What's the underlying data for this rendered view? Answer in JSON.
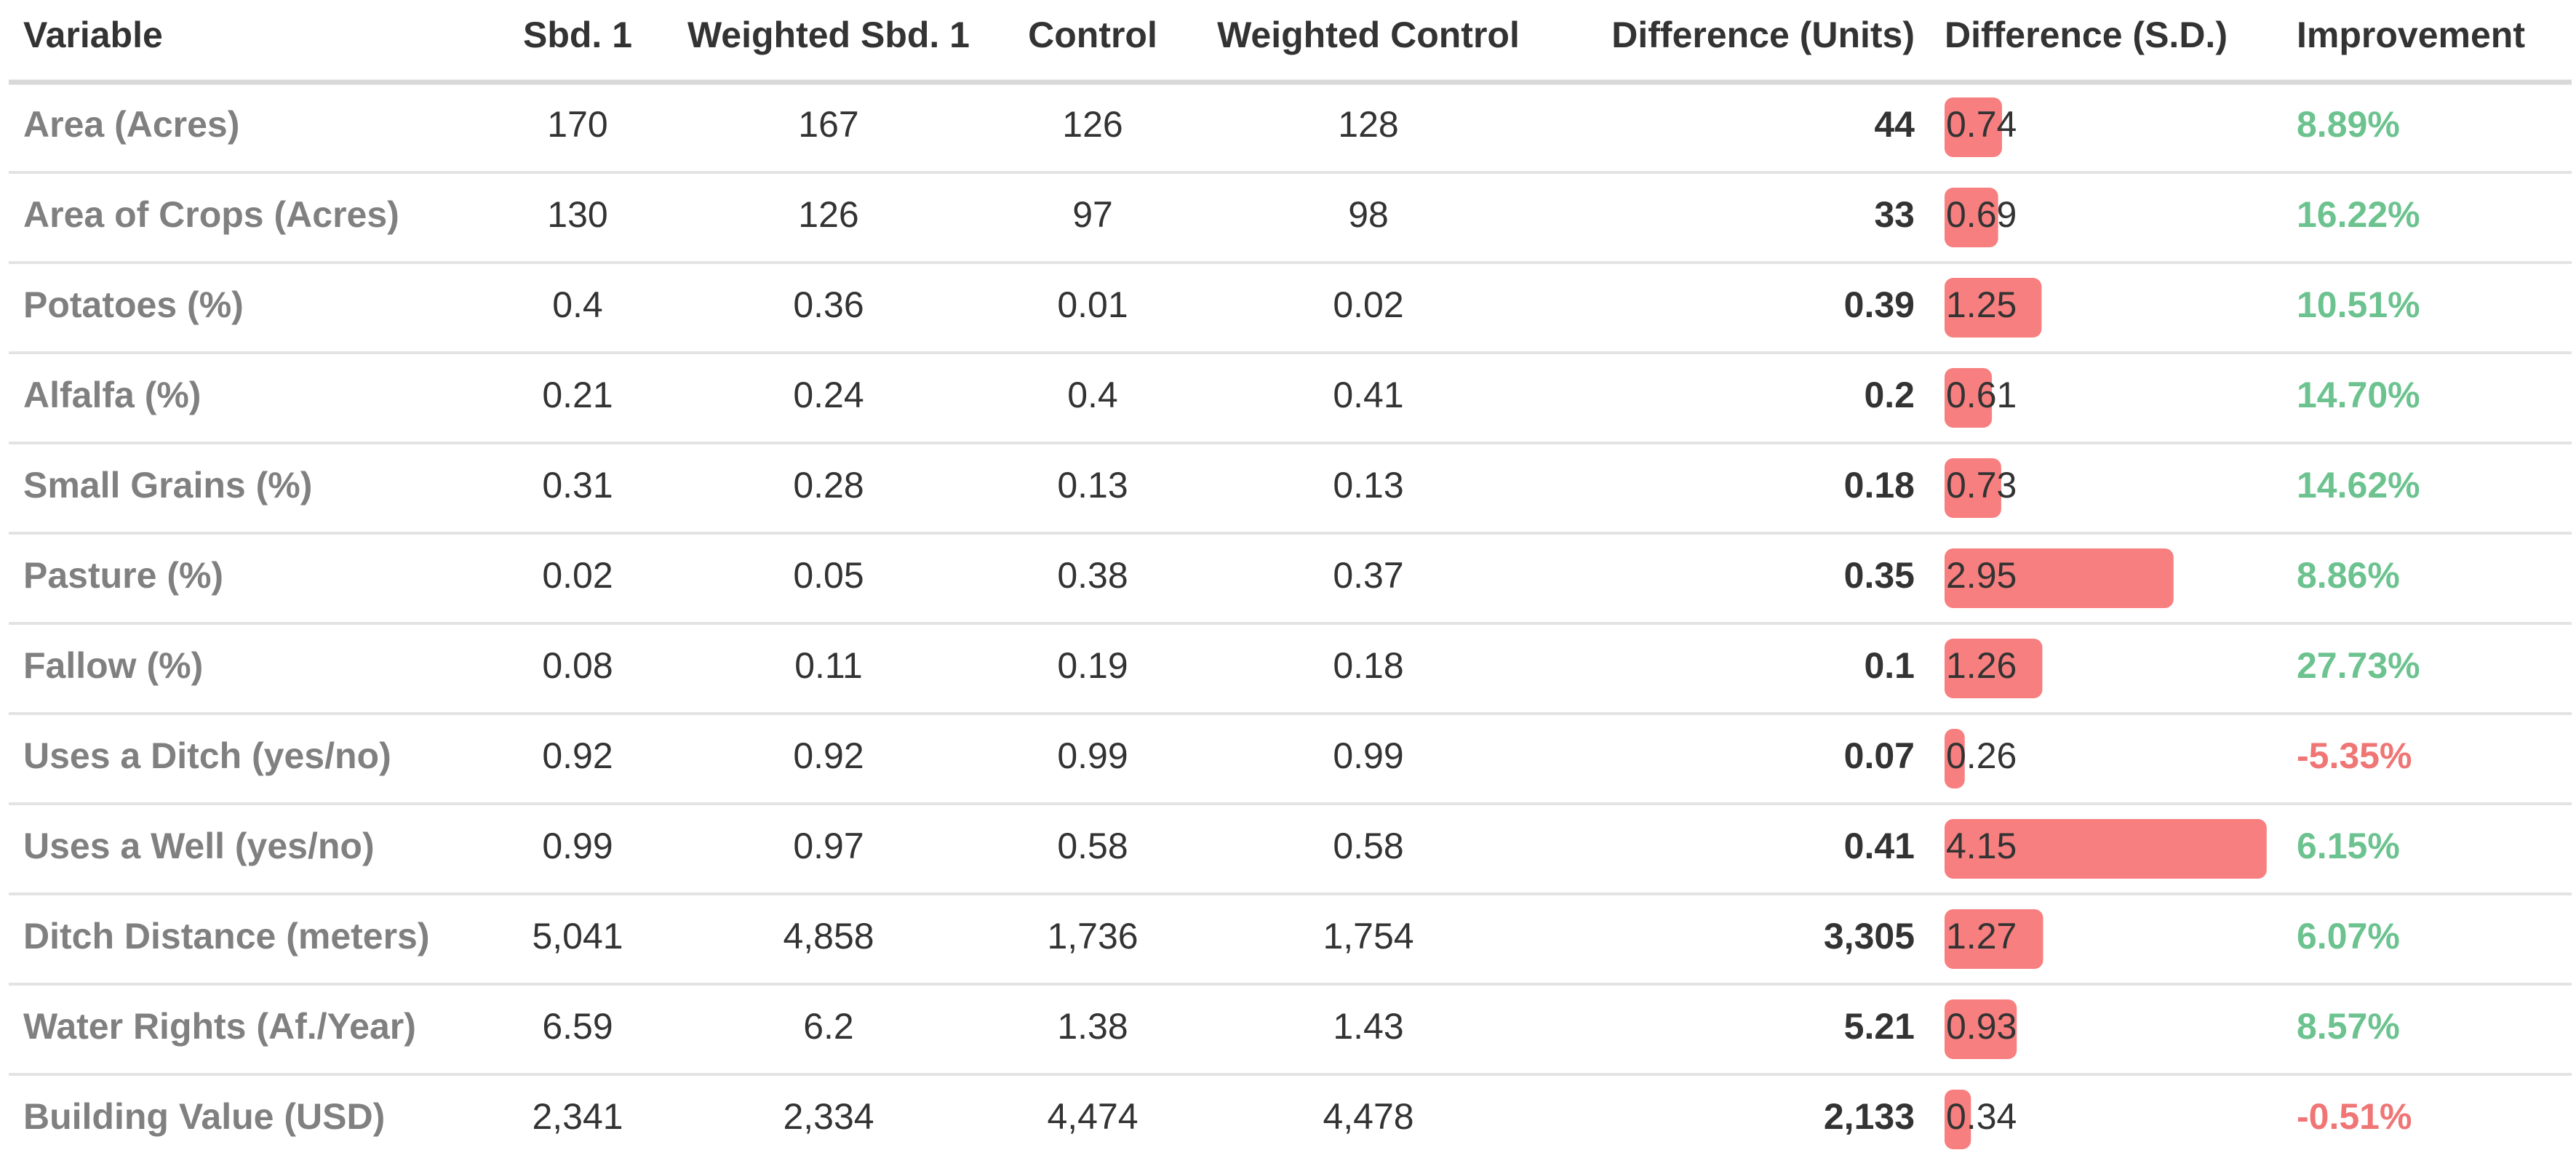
{
  "table": {
    "columns": [
      "Variable",
      "Sbd. 1",
      "Weighted Sbd. 1",
      "Control",
      "Weighted Control",
      "Difference (Units)",
      "Difference (S.D.)",
      "Improvement"
    ],
    "rows": [
      [
        "Area (Acres)",
        "170",
        "167",
        "126",
        "128",
        "44",
        0.74,
        "8.89%"
      ],
      [
        "Area of Crops (Acres)",
        "130",
        "126",
        "97",
        "98",
        "33",
        0.69,
        "16.22%"
      ],
      [
        "Potatoes (%)",
        "0.4",
        "0.36",
        "0.01",
        "0.02",
        "0.39",
        1.25,
        "10.51%"
      ],
      [
        "Alfalfa (%)",
        "0.21",
        "0.24",
        "0.4",
        "0.41",
        "0.2",
        0.61,
        "14.70%"
      ],
      [
        "Small Grains (%)",
        "0.31",
        "0.28",
        "0.13",
        "0.13",
        "0.18",
        0.73,
        "14.62%"
      ],
      [
        "Pasture (%)",
        "0.02",
        "0.05",
        "0.38",
        "0.37",
        "0.35",
        2.95,
        "8.86%"
      ],
      [
        "Fallow (%)",
        "0.08",
        "0.11",
        "0.19",
        "0.18",
        "0.1",
        1.26,
        "27.73%"
      ],
      [
        "Uses a Ditch (yes/no)",
        "0.92",
        "0.92",
        "0.99",
        "0.99",
        "0.07",
        0.26,
        "-5.35%"
      ],
      [
        "Uses a Well (yes/no)",
        "0.99",
        "0.97",
        "0.58",
        "0.58",
        "0.41",
        4.15,
        "6.15%"
      ],
      [
        "Ditch Distance (meters)",
        "5,041",
        "4,858",
        "1,736",
        "1,754",
        "3,305",
        1.27,
        "6.07%"
      ],
      [
        "Water Rights (Af./Year)",
        "6.59",
        "6.2",
        "1.38",
        "1.43",
        "5.21",
        0.93,
        "8.57%"
      ],
      [
        "Building Value (USD)",
        "2,341",
        "2,334",
        "4,474",
        "4,478",
        "2,133",
        0.34,
        "-0.51%"
      ]
    ],
    "bar_color": "#f87f7f",
    "positive_color": "#6cc38f",
    "negative_color": "#f07575"
  }
}
